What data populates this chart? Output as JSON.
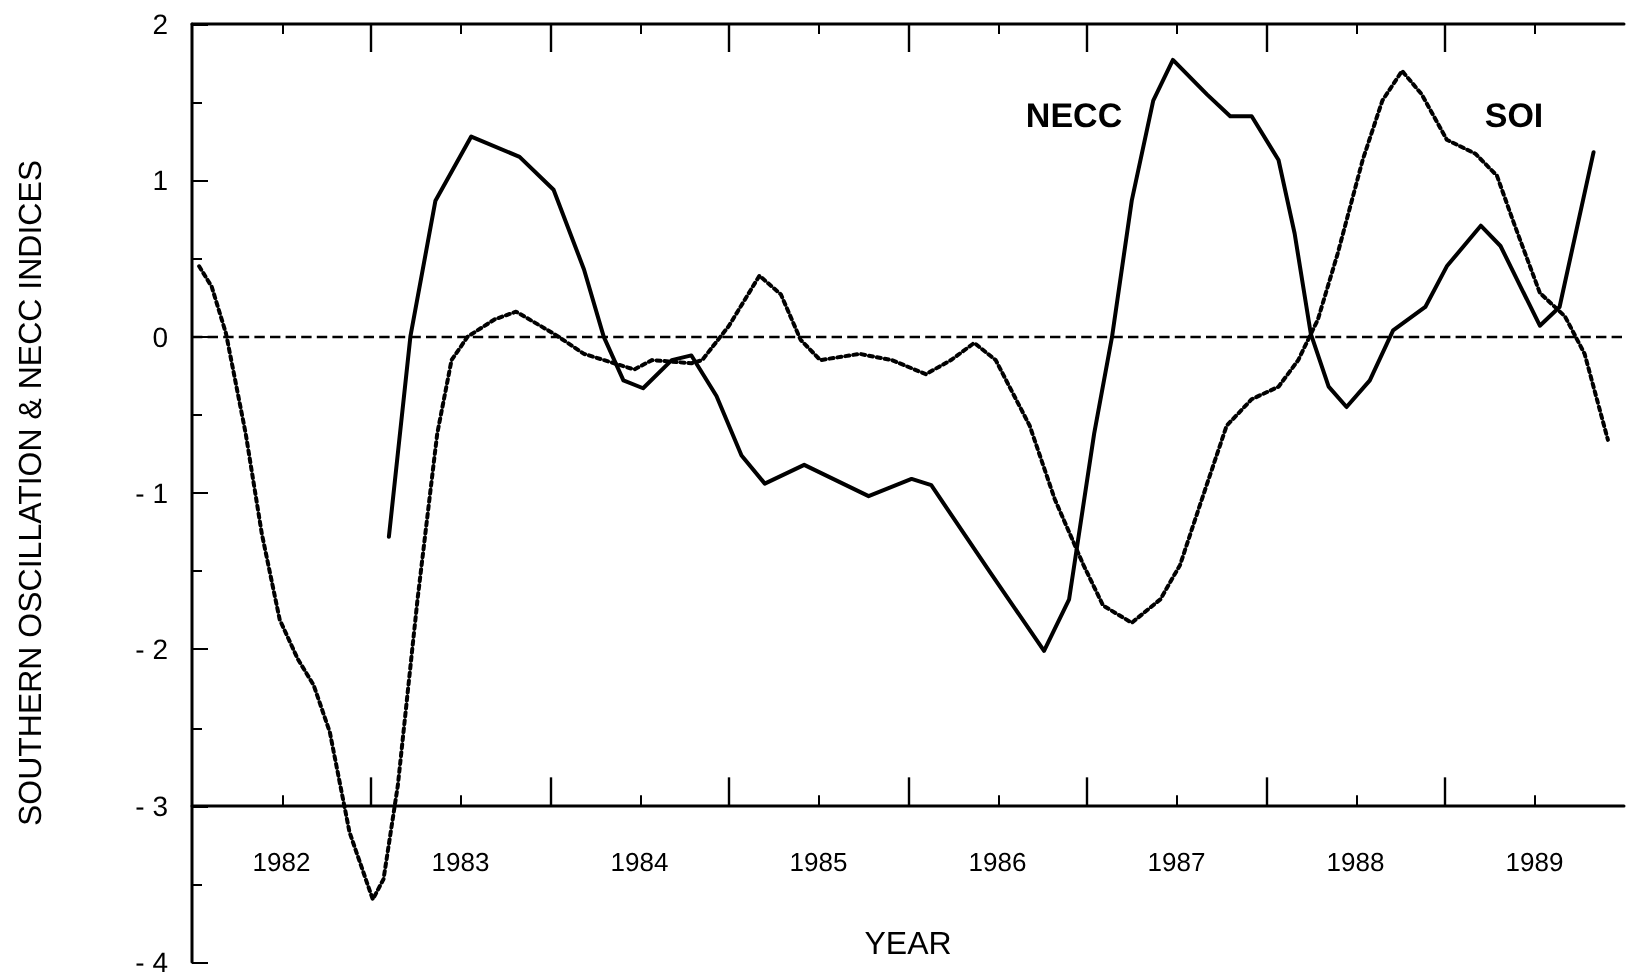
{
  "chart_data": {
    "type": "line",
    "xlabel": "YEAR",
    "ylabel": "SOUTHERN OSCILLATION & NECC INDICES",
    "xlim": [
      1982,
      1990
    ],
    "xticks": [
      {
        "value": 1982.5,
        "label": "1982"
      },
      {
        "value": 1983,
        "label": null
      },
      {
        "value": 1983.5,
        "label": "1983"
      },
      {
        "value": 1984,
        "label": null
      },
      {
        "value": 1984.5,
        "label": "1984"
      },
      {
        "value": 1985,
        "label": null
      },
      {
        "value": 1985.5,
        "label": "1985"
      },
      {
        "value": 1986,
        "label": null
      },
      {
        "value": 1986.5,
        "label": "1986"
      },
      {
        "value": 1987,
        "label": null
      },
      {
        "value": 1987.5,
        "label": "1987"
      },
      {
        "value": 1988,
        "label": null
      },
      {
        "value": 1988.5,
        "label": "1988"
      },
      {
        "value": 1989,
        "label": null
      },
      {
        "value": 1989.5,
        "label": "1989"
      }
    ],
    "ylim": [
      -4,
      2
    ],
    "yticks": [
      {
        "value": -4,
        "label": "- 4"
      },
      {
        "value": -3.5,
        "label": null
      },
      {
        "value": -3,
        "label": "- 3"
      },
      {
        "value": -2.5,
        "label": null
      },
      {
        "value": -2,
        "label": "- 2"
      },
      {
        "value": -1.5,
        "label": null
      },
      {
        "value": -1,
        "label": "- 1"
      },
      {
        "value": -0.5,
        "label": null
      },
      0,
      {
        "value": 0.5,
        "label": null
      },
      1,
      {
        "value": 1.5,
        "label": null
      },
      2
    ],
    "grid": false,
    "legend": false,
    "marker": "none",
    "ref_lines": [
      {
        "axis": "y",
        "value": 0,
        "line_style": "dashed",
        "color": "#000000"
      }
    ],
    "series": [
      {
        "name": "NECC",
        "color": "#000000",
        "line_style": "solid",
        "x": [
          1983.1,
          1983.22,
          1983.36,
          1983.56,
          1983.83,
          1984.02,
          1984.19,
          1984.3,
          1984.41,
          1984.52,
          1984.68,
          1984.79,
          1984.93,
          1985.07,
          1985.2,
          1985.42,
          1985.78,
          1986.02,
          1986.13,
          1986.46,
          1986.76,
          1986.9,
          1987.04,
          1987.14,
          1987.25,
          1987.37,
          1987.48,
          1987.67,
          1987.8,
          1987.92,
          1988.07,
          1988.16,
          1988.25,
          1988.35,
          1988.45,
          1988.58,
          1988.71,
          1988.89,
          1989.01,
          1989.2,
          1989.31,
          1989.53,
          1989.64,
          1989.83
        ],
        "values": [
          -1.28,
          0,
          0.87,
          1.28,
          1.15,
          0.94,
          0.43,
          0,
          -0.28,
          -0.33,
          -0.15,
          -0.12,
          -0.38,
          -0.76,
          -0.94,
          -0.82,
          -1.02,
          -0.91,
          -0.95,
          -1.51,
          -2.01,
          -1.68,
          -0.62,
          0,
          0.87,
          1.51,
          1.77,
          1.55,
          1.41,
          1.41,
          1.13,
          0.66,
          0.02,
          -0.32,
          -0.45,
          -0.28,
          0.04,
          0.19,
          0.45,
          0.71,
          0.58,
          0.07,
          0.19,
          1.18
        ]
      },
      {
        "name": "SOI",
        "color": "#000000",
        "line_style": "dotted",
        "x": [
          1982.04,
          1982.11,
          1982.19,
          1982.3,
          1982.39,
          1982.49,
          1982.59,
          1982.68,
          1982.77,
          1982.88,
          1983.01,
          1983.07,
          1983.15,
          1983.26,
          1983.37,
          1983.45,
          1983.54,
          1983.69,
          1983.81,
          1984.02,
          1984.19,
          1984.47,
          1984.57,
          1984.79,
          1984.85,
          1985,
          1985.17,
          1985.29,
          1985.4,
          1985.51,
          1985.73,
          1985.91,
          1986.1,
          1986.24,
          1986.37,
          1986.49,
          1986.68,
          1986.82,
          1986.98,
          1987.09,
          1987.25,
          1987.41,
          1987.52,
          1987.63,
          1987.78,
          1987.92,
          1988.07,
          1988.18,
          1988.29,
          1988.4,
          1988.54,
          1988.65,
          1988.76,
          1988.87,
          1989.01,
          1989.17,
          1989.29,
          1989.39,
          1989.53,
          1989.67,
          1989.78,
          1989.91
        ],
        "values": [
          0.45,
          0.32,
          0.02,
          -0.62,
          -1.26,
          -1.81,
          -2.06,
          -2.23,
          -2.53,
          -3.17,
          -3.6,
          -3.47,
          -2.87,
          -1.68,
          -0.62,
          -0.15,
          0,
          0.11,
          0.16,
          0.02,
          -0.11,
          -0.21,
          -0.15,
          -0.17,
          -0.15,
          0.07,
          0.39,
          0.27,
          -0.02,
          -0.15,
          -0.11,
          -0.15,
          -0.24,
          -0.15,
          -0.04,
          -0.15,
          -0.57,
          -1.04,
          -1.46,
          -1.72,
          -1.83,
          -1.68,
          -1.46,
          -1.08,
          -0.57,
          -0.4,
          -0.32,
          -0.15,
          0.11,
          0.53,
          1.13,
          1.51,
          1.7,
          1.55,
          1.26,
          1.17,
          1.03,
          0.71,
          0.28,
          0.13,
          -0.11,
          -0.66
        ]
      }
    ]
  }
}
